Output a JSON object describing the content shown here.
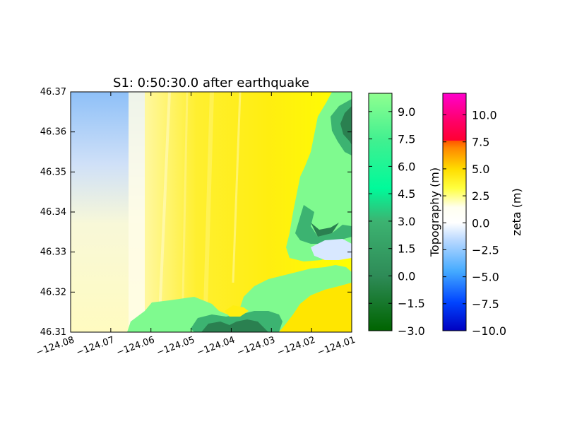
{
  "title": "S1: 0:50:30.0 after earthquake",
  "map": {
    "x_ticks": [
      "−124.08",
      "−124.07",
      "−124.06",
      "−124.05",
      "−124.04",
      "−124.03",
      "−124.02",
      "−124.01"
    ],
    "y_ticks": [
      "46.31",
      "46.32",
      "46.33",
      "46.34",
      "46.35",
      "46.36",
      "46.37"
    ],
    "x_range": [
      -124.08,
      -124.01
    ],
    "y_range": [
      46.31,
      46.37
    ]
  },
  "colorbars": {
    "topography": {
      "label": "Topography (m)",
      "ticks": [
        "−3.0",
        "−1.5",
        "0.0",
        "1.5",
        "3.0",
        "4.5",
        "6.0",
        "7.5",
        "9.0"
      ],
      "range": [
        -3.0,
        10.0
      ]
    },
    "zeta": {
      "label": "zeta (m)",
      "ticks": [
        "−10.0",
        "−7.5",
        "−5.0",
        "−2.5",
        "0.0",
        "2.5",
        "5.0",
        "7.5",
        "10.0"
      ],
      "range": [
        -10.0,
        12.0
      ]
    }
  },
  "colors": {
    "water_yellow": "#ffee00",
    "water_bright": "#ffff00",
    "land_light": "#7ffa8f",
    "land_mid": "#4cc87a",
    "land_dark": "#2a8050",
    "offshore_blue": "#bcd8f8"
  }
}
